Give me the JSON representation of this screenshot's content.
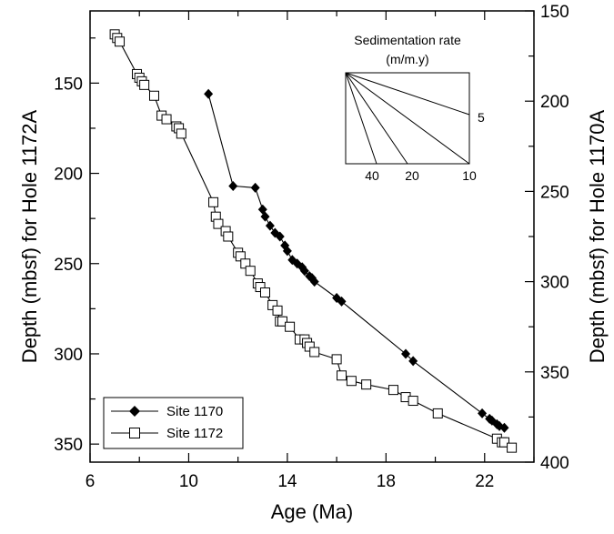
{
  "chart_data": {
    "type": "line",
    "xlabel": "Age (Ma)",
    "ylabel_left": "Depth (mbsf) for Hole 1172A",
    "ylabel_right": "Depth (mbsf) for Hole 1170A",
    "xlim": [
      6,
      24
    ],
    "ylim_left": [
      360,
      110
    ],
    "ylim_right": [
      400,
      150
    ],
    "x_ticks": [
      6,
      10,
      14,
      18,
      22
    ],
    "y_ticks_left": [
      150,
      200,
      250,
      300,
      350
    ],
    "y_ticks_right": [
      150,
      200,
      250,
      300,
      350,
      400
    ],
    "legend_position": "bottom-left",
    "inset": {
      "title_line1": "Sedimentation rate",
      "title_line2": "(m/m.y)",
      "rate_labels": [
        "5",
        "40",
        "20",
        "10"
      ]
    },
    "series": [
      {
        "name": "Site 1170",
        "axis": "right",
        "marker": "filled-diamond",
        "x": [
          10.8,
          11.8,
          12.7,
          13.0,
          13.1,
          13.3,
          13.5,
          13.7,
          13.9,
          14.0,
          14.2,
          14.4,
          14.6,
          14.7,
          14.9,
          15.0,
          15.1,
          16.0,
          16.2,
          18.8,
          19.1,
          21.9,
          22.2,
          22.3,
          22.5,
          22.6,
          22.8
        ],
        "y": [
          196,
          247,
          248,
          260,
          264,
          269,
          273,
          275,
          280,
          283,
          288,
          290,
          292,
          294,
          297,
          298,
          300,
          309,
          311,
          340,
          344,
          373,
          376,
          377,
          379,
          380,
          381
        ]
      },
      {
        "name": "Site 1172",
        "axis": "left",
        "marker": "open-square",
        "x": [
          7.0,
          7.1,
          7.2,
          7.9,
          8.0,
          8.1,
          8.2,
          8.6,
          8.9,
          9.1,
          9.5,
          9.6,
          9.7,
          11.0,
          11.1,
          11.2,
          11.5,
          11.6,
          12.0,
          12.1,
          12.3,
          12.5,
          12.8,
          12.9,
          13.1,
          13.4,
          13.6,
          13.7,
          13.8,
          14.1,
          14.5,
          14.7,
          14.8,
          14.9,
          15.1,
          16.0,
          16.2,
          16.6,
          17.2,
          18.3,
          18.8,
          19.1,
          20.1,
          22.5,
          22.7,
          22.8,
          23.1
        ],
        "y": [
          123,
          125,
          127,
          145,
          147,
          149,
          151,
          157,
          168,
          170,
          174,
          175,
          178,
          216,
          224,
          228,
          232,
          235,
          244,
          246,
          250,
          254,
          261,
          263,
          266,
          273,
          276,
          282,
          282,
          285,
          292,
          292,
          294,
          296,
          299,
          303,
          312,
          315,
          317,
          320,
          324,
          326,
          333,
          347,
          349,
          349,
          352
        ]
      }
    ]
  }
}
